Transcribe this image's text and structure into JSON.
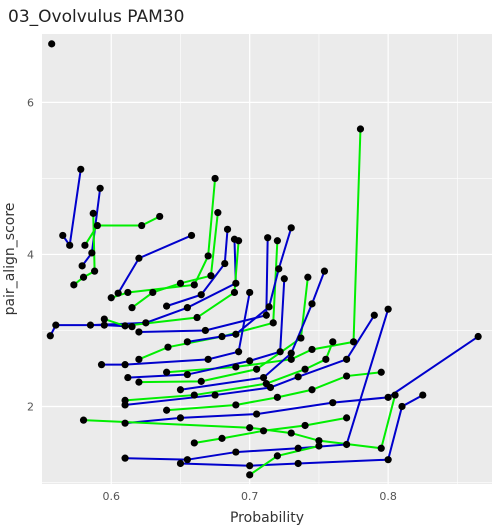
{
  "chart_data": {
    "type": "scatter",
    "title": "03_Ovolvulus PAM30",
    "xlabel": "Probability",
    "ylabel": "pair_align_score",
    "xlim": [
      0.55,
      0.875
    ],
    "ylim": [
      0.98,
      6.9
    ],
    "x_ticks": [
      0.6,
      0.7,
      0.8
    ],
    "y_ticks": [
      2,
      4,
      6
    ],
    "x_tick_labels": [
      "0.6",
      "0.7",
      "0.8"
    ],
    "y_tick_labels": [
      "2",
      "4",
      "6"
    ],
    "grid": true,
    "legend": "none",
    "colors": {
      "panel": "#ebebeb",
      "grid": "#ffffff",
      "blue": "#0000cc",
      "green": "#00ee00",
      "point": "#000000"
    },
    "series": [
      {
        "color": "blue",
        "values": [
          [
            0.578,
            5.12
          ],
          [
            0.57,
            4.12
          ],
          [
            0.565,
            4.25
          ]
        ]
      },
      {
        "color": "blue",
        "values": [
          [
            0.592,
            4.87
          ],
          [
            0.586,
            4.02
          ],
          [
            0.579,
            3.85
          ]
        ]
      },
      {
        "color": "green",
        "values": [
          [
            0.635,
            4.5
          ],
          [
            0.622,
            4.38
          ],
          [
            0.59,
            4.38
          ],
          [
            0.581,
            4.12
          ]
        ]
      },
      {
        "color": "green",
        "values": [
          [
            0.587,
            4.54
          ],
          [
            0.588,
            3.78
          ],
          [
            0.58,
            3.7
          ],
          [
            0.573,
            3.6
          ]
        ]
      },
      {
        "color": "green",
        "values": [
          [
            0.675,
            5.0
          ],
          [
            0.67,
            3.98
          ],
          [
            0.66,
            3.6
          ],
          [
            0.612,
            3.5
          ],
          [
            0.6,
            3.43
          ]
        ]
      },
      {
        "color": "blue",
        "values": [
          [
            0.658,
            4.25
          ],
          [
            0.62,
            3.95
          ],
          [
            0.605,
            3.49
          ]
        ]
      },
      {
        "color": "green",
        "values": [
          [
            0.677,
            4.55
          ],
          [
            0.672,
            3.72
          ],
          [
            0.65,
            3.62
          ],
          [
            0.63,
            3.5
          ],
          [
            0.615,
            3.3
          ]
        ]
      },
      {
        "color": "blue",
        "values": [
          [
            0.684,
            4.33
          ],
          [
            0.682,
            3.88
          ],
          [
            0.665,
            3.47
          ],
          [
            0.64,
            3.32
          ]
        ]
      },
      {
        "color": "blue",
        "values": [
          [
            0.689,
            4.2
          ],
          [
            0.69,
            3.62
          ],
          [
            0.655,
            3.3
          ],
          [
            0.625,
            3.1
          ],
          [
            0.585,
            3.07
          ]
        ]
      },
      {
        "color": "blue",
        "values": [
          [
            0.556,
            2.93
          ],
          [
            0.56,
            3.07
          ],
          [
            0.595,
            3.07
          ],
          [
            0.615,
            3.05
          ]
        ]
      },
      {
        "color": "green",
        "values": [
          [
            0.692,
            4.18
          ],
          [
            0.689,
            3.5
          ],
          [
            0.662,
            3.17
          ],
          [
            0.61,
            3.06
          ],
          [
            0.595,
            3.15
          ]
        ]
      },
      {
        "color": "blue",
        "values": [
          [
            0.713,
            4.22
          ],
          [
            0.712,
            3.2
          ],
          [
            0.668,
            3.0
          ],
          [
            0.62,
            2.98
          ]
        ]
      },
      {
        "color": "green",
        "values": [
          [
            0.72,
            4.18
          ],
          [
            0.717,
            3.1
          ],
          [
            0.68,
            2.92
          ],
          [
            0.641,
            2.78
          ],
          [
            0.62,
            2.62
          ]
        ]
      },
      {
        "color": "blue",
        "values": [
          [
            0.73,
            4.35
          ],
          [
            0.721,
            3.81
          ],
          [
            0.714,
            3.31
          ],
          [
            0.69,
            2.95
          ],
          [
            0.655,
            2.85
          ]
        ]
      },
      {
        "color": "green",
        "values": [
          [
            0.78,
            5.65
          ],
          [
            0.775,
            2.85
          ],
          [
            0.745,
            2.75
          ],
          [
            0.73,
            2.62
          ],
          [
            0.69,
            2.52
          ],
          [
            0.64,
            2.45
          ]
        ]
      },
      {
        "color": "blue",
        "values": [
          [
            0.7,
            3.5
          ],
          [
            0.692,
            2.72
          ],
          [
            0.67,
            2.62
          ],
          [
            0.61,
            2.55
          ],
          [
            0.593,
            2.55
          ]
        ]
      },
      {
        "color": "blue",
        "values": [
          [
            0.725,
            3.68
          ],
          [
            0.722,
            2.72
          ],
          [
            0.7,
            2.6
          ],
          [
            0.655,
            2.42
          ],
          [
            0.612,
            2.38
          ]
        ]
      },
      {
        "color": "green",
        "values": [
          [
            0.742,
            3.7
          ],
          [
            0.737,
            2.9
          ],
          [
            0.705,
            2.49
          ],
          [
            0.665,
            2.33
          ],
          [
            0.62,
            2.32
          ]
        ]
      },
      {
        "color": "blue",
        "values": [
          [
            0.754,
            3.78
          ],
          [
            0.745,
            3.35
          ],
          [
            0.73,
            2.7
          ],
          [
            0.71,
            2.38
          ],
          [
            0.65,
            2.22
          ]
        ]
      },
      {
        "color": "green",
        "values": [
          [
            0.76,
            2.85
          ],
          [
            0.755,
            2.62
          ],
          [
            0.74,
            2.49
          ],
          [
            0.712,
            2.3
          ],
          [
            0.66,
            2.15
          ],
          [
            0.61,
            2.08
          ]
        ]
      },
      {
        "color": "blue",
        "values": [
          [
            0.79,
            3.2
          ],
          [
            0.77,
            2.62
          ],
          [
            0.735,
            2.39
          ],
          [
            0.715,
            2.25
          ],
          [
            0.675,
            2.15
          ],
          [
            0.61,
            2.02
          ]
        ]
      },
      {
        "color": "green",
        "values": [
          [
            0.795,
            2.45
          ],
          [
            0.77,
            2.4
          ],
          [
            0.745,
            2.22
          ],
          [
            0.72,
            2.12
          ],
          [
            0.69,
            2.02
          ],
          [
            0.64,
            1.95
          ]
        ]
      },
      {
        "color": "blue",
        "values": [
          [
            0.865,
            2.92
          ],
          [
            0.8,
            2.12
          ],
          [
            0.76,
            2.05
          ],
          [
            0.705,
            1.9
          ],
          [
            0.65,
            1.85
          ],
          [
            0.61,
            1.78
          ]
        ]
      },
      {
        "color": "green",
        "values": [
          [
            0.805,
            2.15
          ],
          [
            0.795,
            1.45
          ],
          [
            0.75,
            1.55
          ],
          [
            0.73,
            1.65
          ],
          [
            0.7,
            1.72
          ],
          [
            0.58,
            1.82
          ]
        ]
      },
      {
        "color": "blue",
        "values": [
          [
            0.8,
            3.28
          ],
          [
            0.77,
            1.5
          ],
          [
            0.735,
            1.45
          ],
          [
            0.69,
            1.4
          ],
          [
            0.655,
            1.3
          ],
          [
            0.61,
            1.32
          ]
        ]
      },
      {
        "color": "green",
        "values": [
          [
            0.77,
            1.85
          ],
          [
            0.74,
            1.75
          ],
          [
            0.71,
            1.68
          ],
          [
            0.68,
            1.58
          ],
          [
            0.66,
            1.52
          ]
        ]
      },
      {
        "color": "blue",
        "values": [
          [
            0.825,
            2.15
          ],
          [
            0.81,
            2.0
          ],
          [
            0.8,
            1.3
          ],
          [
            0.735,
            1.25
          ],
          [
            0.7,
            1.22
          ],
          [
            0.65,
            1.25
          ]
        ]
      },
      {
        "color": "green",
        "values": [
          [
            0.75,
            1.48
          ],
          [
            0.72,
            1.35
          ],
          [
            0.7,
            1.1
          ]
        ]
      }
    ],
    "extra_points": [
      [
        0.557,
        6.77
      ]
    ]
  }
}
